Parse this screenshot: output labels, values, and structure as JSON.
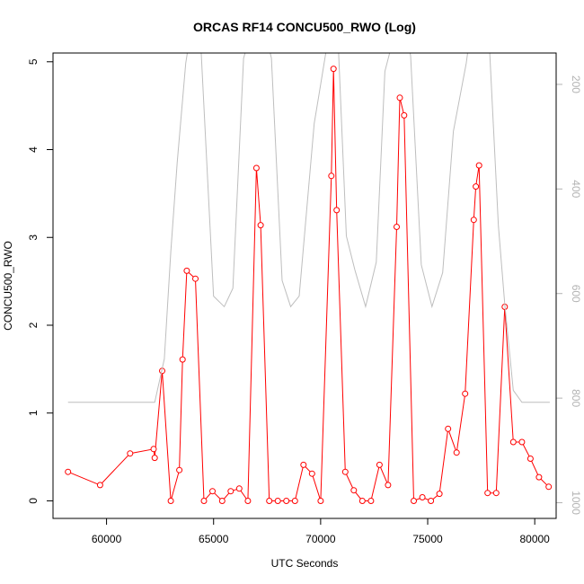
{
  "chart_data": {
    "type": "line",
    "title": "ORCAS RF14 CONCU500_RWO (Log)",
    "xlabel": "UTC Seconds",
    "ylabel": "CONCU500_RWO",
    "xlim": [
      57500,
      81000
    ],
    "ylim": [
      -0.2,
      5.1
    ],
    "x_ticks": [
      60000,
      65000,
      70000,
      75000,
      80000
    ],
    "y_ticks": [
      0,
      1,
      2,
      3,
      4,
      5
    ],
    "y2_ticks": [
      200,
      400,
      600,
      800,
      1000
    ],
    "y2lim": [
      1030,
      140
    ],
    "y2_orientation": "inverted",
    "grid": false,
    "series": [
      {
        "axis": "left",
        "color": "#ff0000",
        "style": "line+circle",
        "x": [
          58200,
          59700,
          61100,
          62200,
          62250,
          62600,
          63000,
          63400,
          63550,
          63750,
          64150,
          64550,
          64950,
          65400,
          65800,
          66200,
          66600,
          67000,
          67200,
          67600,
          68000,
          68400,
          68800,
          69200,
          69600,
          70000,
          70500,
          70600,
          70750,
          71150,
          71550,
          71950,
          72350,
          72750,
          73150,
          73550,
          73700,
          73900,
          74350,
          74750,
          75150,
          75550,
          75950,
          76350,
          76750,
          77150,
          77250,
          77400,
          77800,
          78200,
          78600,
          79000,
          79400,
          79800,
          80200,
          80650
        ],
        "values": [
          0.33,
          0.18,
          0.54,
          0.59,
          0.49,
          1.48,
          0.0,
          0.35,
          1.61,
          2.62,
          2.53,
          0.0,
          0.11,
          0.0,
          0.11,
          0.14,
          0.0,
          3.79,
          3.14,
          0.0,
          0.0,
          0.0,
          0.0,
          0.41,
          0.31,
          0.0,
          3.7,
          4.92,
          3.31,
          0.33,
          0.12,
          0.0,
          0.0,
          0.41,
          0.18,
          3.12,
          4.59,
          4.39,
          0.0,
          0.04,
          0.0,
          0.08,
          0.82,
          0.55,
          1.22,
          3.2,
          3.58,
          3.82,
          0.09,
          0.09,
          2.21,
          0.67,
          0.67,
          0.48,
          0.27,
          0.16
        ]
      },
      {
        "axis": "right",
        "color": "#bebebe",
        "style": "line",
        "x": [
          58200,
          62250,
          62700,
          63000,
          63300,
          63700,
          64000,
          64300,
          65000,
          65500,
          65900,
          66400,
          66900,
          67300,
          67700,
          68200,
          68600,
          69000,
          69700,
          70000,
          70400,
          70800,
          71200,
          71600,
          72100,
          72600,
          73000,
          73600,
          73900,
          74200,
          74700,
          75200,
          75700,
          76200,
          76800,
          77200,
          77500,
          77900,
          78300,
          78600,
          79000,
          79400,
          80700
        ],
        "values": [
          808,
          808,
          725,
          520,
          350,
          160,
          80,
          40,
          605,
          625,
          590,
          150,
          80,
          80,
          150,
          575,
          625,
          605,
          275,
          200,
          100,
          100,
          490,
          555,
          625,
          540,
          175,
          80,
          80,
          145,
          545,
          625,
          560,
          290,
          160,
          40,
          40,
          140,
          470,
          620,
          785,
          808,
          808
        ]
      }
    ]
  }
}
